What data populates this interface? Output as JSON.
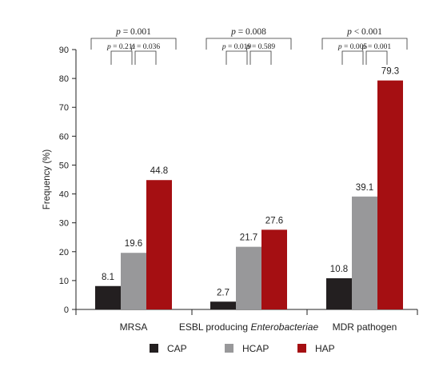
{
  "chart_data": {
    "type": "bar",
    "ylabel": "Frequency (%)",
    "ylim": [
      0,
      90
    ],
    "yticks": [
      0,
      10,
      20,
      30,
      40,
      50,
      60,
      70,
      80,
      90
    ],
    "categories": [
      {
        "pre": "MRSA",
        "italic": "",
        "post": ""
      },
      {
        "pre": "ESBL producing ",
        "italic": "Enterobacteriae",
        "post": ""
      },
      {
        "pre": "MDR pathogen",
        "italic": "",
        "post": ""
      }
    ],
    "series": [
      {
        "name": "CAP",
        "color": "#231f20",
        "values": [
          8.1,
          2.7,
          10.8
        ],
        "labels": [
          "8.1",
          "2.7",
          "10.8"
        ]
      },
      {
        "name": "HCAP",
        "color": "#98989a",
        "values": [
          19.6,
          21.7,
          39.1
        ],
        "labels": [
          "19.6",
          "21.7",
          "39.1"
        ]
      },
      {
        "name": "HAP",
        "color": "#a50f12",
        "values": [
          44.8,
          27.6,
          79.3
        ],
        "labels": [
          "44.8",
          "27.6",
          "79.3"
        ]
      }
    ],
    "annotations": [
      {
        "overall": {
          "p": "p",
          "rest": " = 0.001"
        },
        "left": {
          "p": "p",
          "rest": " = 0.211"
        },
        "right": {
          "p": "p",
          "rest": " = 0.036"
        }
      },
      {
        "overall": {
          "p": "p",
          "rest": " = 0.008"
        },
        "left": {
          "p": "p",
          "rest": " = 0.019"
        },
        "right": {
          "p": "p",
          "rest": " = 0.589"
        }
      },
      {
        "overall": {
          "p": "p",
          "rest": " < 0.001"
        },
        "left": {
          "p": "p",
          "rest": " = 0.005"
        },
        "right": {
          "p": "p",
          "rest": " = 0.001"
        }
      }
    ],
    "legend_position": "bottom-center",
    "grid": false
  }
}
